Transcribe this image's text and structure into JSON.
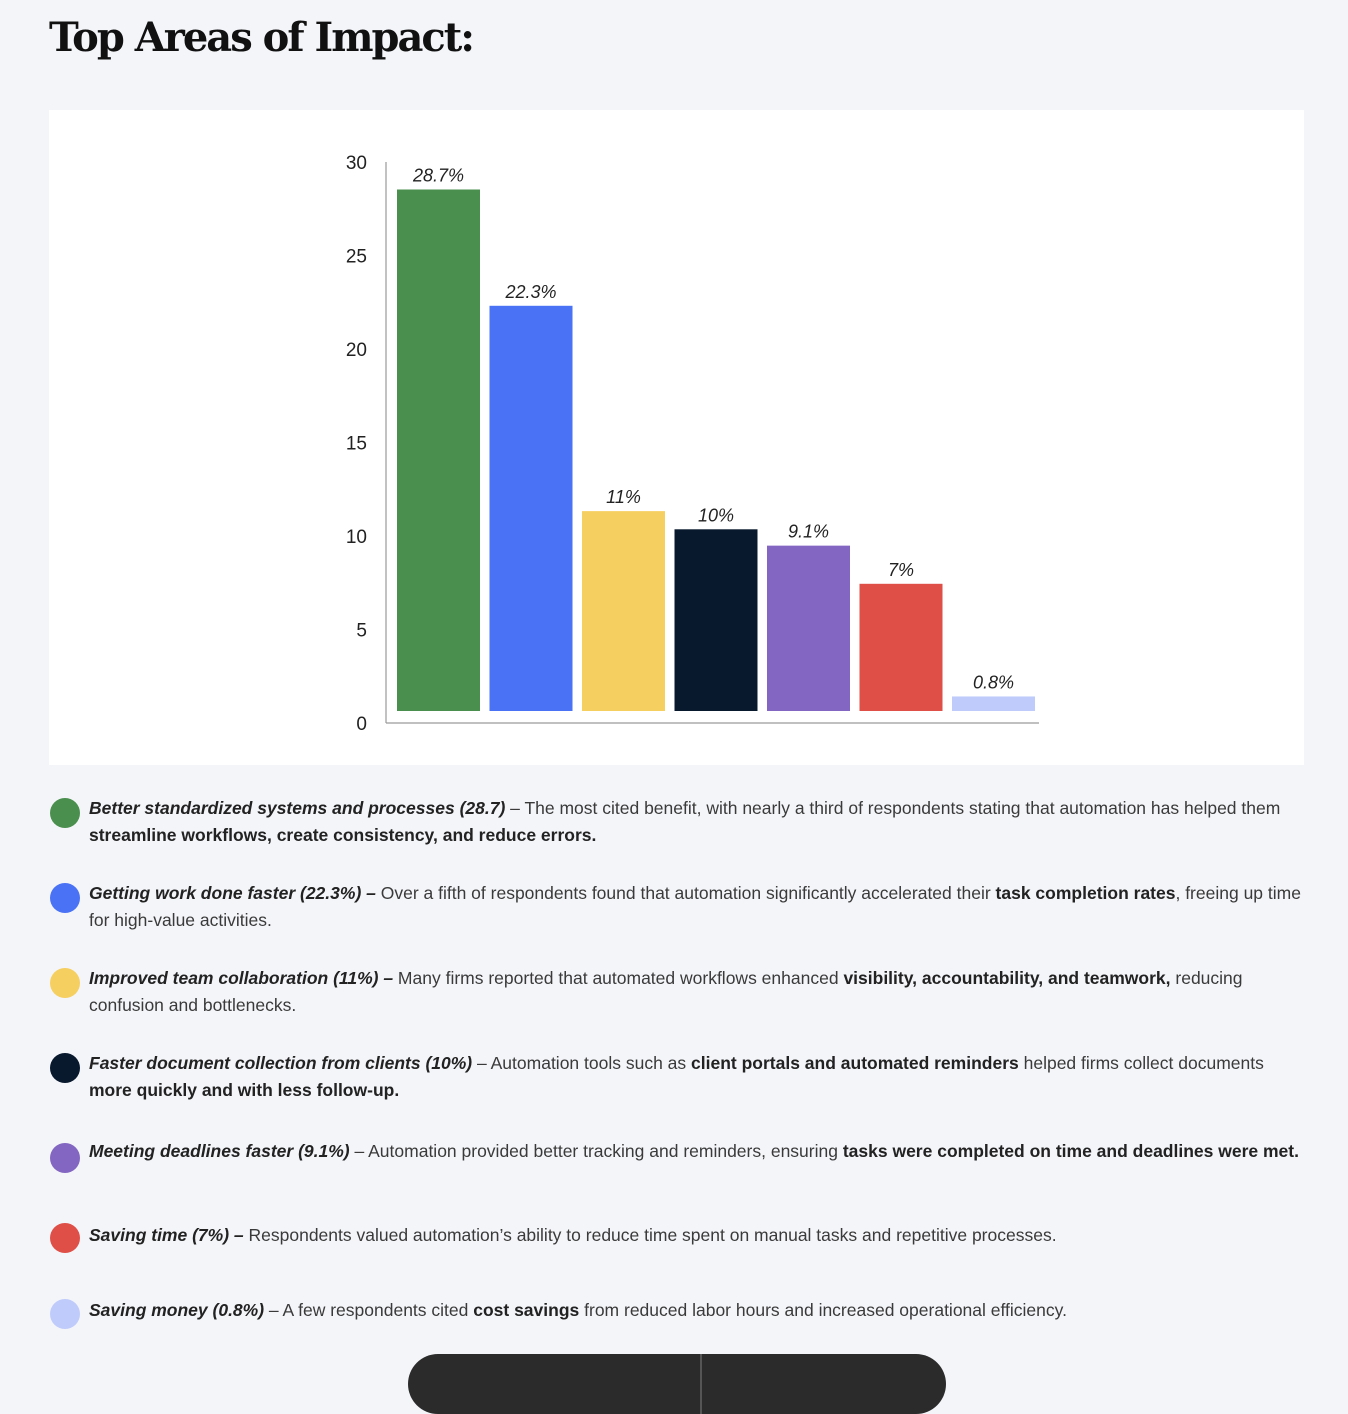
{
  "heading": "Top Areas of Impact:",
  "chart_data": {
    "type": "bar",
    "title": "",
    "xlabel": "",
    "ylabel": "",
    "ylim": [
      0,
      30
    ],
    "y_ticks": [
      "0",
      "5",
      "10",
      "15",
      "20",
      "25",
      "30"
    ],
    "categories": [
      "Better standardized systems and processes",
      "Getting work done faster",
      "Improved team collaboration",
      "Faster document collection from clients",
      "Meeting deadlines faster",
      "Saving time",
      "Saving money"
    ],
    "values": [
      28.7,
      22.3,
      11,
      10,
      9.1,
      7,
      0.8
    ],
    "data_labels": [
      "28.7%",
      "22.3%",
      "11%",
      "10%",
      "9.1%",
      "7%",
      "0.8%"
    ],
    "colors": [
      "#4a8f4e",
      "#4a72f5",
      "#f6cf61",
      "#08182d",
      "#8366c1",
      "#df4f48",
      "#bfcbfb"
    ],
    "grid": false
  },
  "legend": [
    {
      "color": "#4a8f4e",
      "title": "Better standardized systems and processes (28.7)",
      "parts": [
        {
          "t": " – The most cited benefit, with nearly a third of respondents stating that automation has helped them ",
          "b": false
        },
        {
          "t": "streamline workflows, create consistency, and reduce errors.",
          "b": true
        }
      ]
    },
    {
      "color": "#4a72f5",
      "title": "Getting work done faster (22.3%) –",
      "parts": [
        {
          "t": " Over a fifth of respondents found that automation significantly accelerated their ",
          "b": false
        },
        {
          "t": "task completion rates",
          "b": true
        },
        {
          "t": ", freeing up time for high-value activities.",
          "b": false
        }
      ]
    },
    {
      "color": "#f6cf61",
      "title": "Improved team collaboration (11%) –",
      "parts": [
        {
          "t": " Many firms reported that automated workflows enhanced ",
          "b": false
        },
        {
          "t": "visibility, accountability, and teamwork,",
          "b": true
        },
        {
          "t": " reducing confusion and bottlenecks.",
          "b": false
        }
      ]
    },
    {
      "color": "#08182d",
      "title": "Faster document collection from clients (10%)",
      "parts": [
        {
          "t": " – Automation tools such as ",
          "b": false
        },
        {
          "t": "client portals and automated reminders",
          "b": true
        },
        {
          "t": " helped firms collect documents ",
          "b": false
        },
        {
          "t": "more quickly and with less follow-up.",
          "b": true
        }
      ]
    },
    {
      "color": "#8366c1",
      "title": "Meeting deadlines faster (9.1%)",
      "parts": [
        {
          "t": " – Automation provided better tracking and reminders, ensuring ",
          "b": false
        },
        {
          "t": "tasks were completed on time and deadlines were met.",
          "b": true
        }
      ]
    },
    {
      "color": "#df4f48",
      "title": "Saving time (7%) –",
      "parts": [
        {
          "t": " Respondents valued automation’s ability to reduce time spent on manual tasks and repetitive processes.",
          "b": false
        }
      ]
    },
    {
      "color": "#bfcbfb",
      "title": "Saving money (0.8%)",
      "parts": [
        {
          "t": " – A few respondents cited ",
          "b": false
        },
        {
          "t": "cost savings",
          "b": true
        },
        {
          "t": " from reduced labor hours and increased operational efficiency.",
          "b": false
        }
      ]
    }
  ]
}
